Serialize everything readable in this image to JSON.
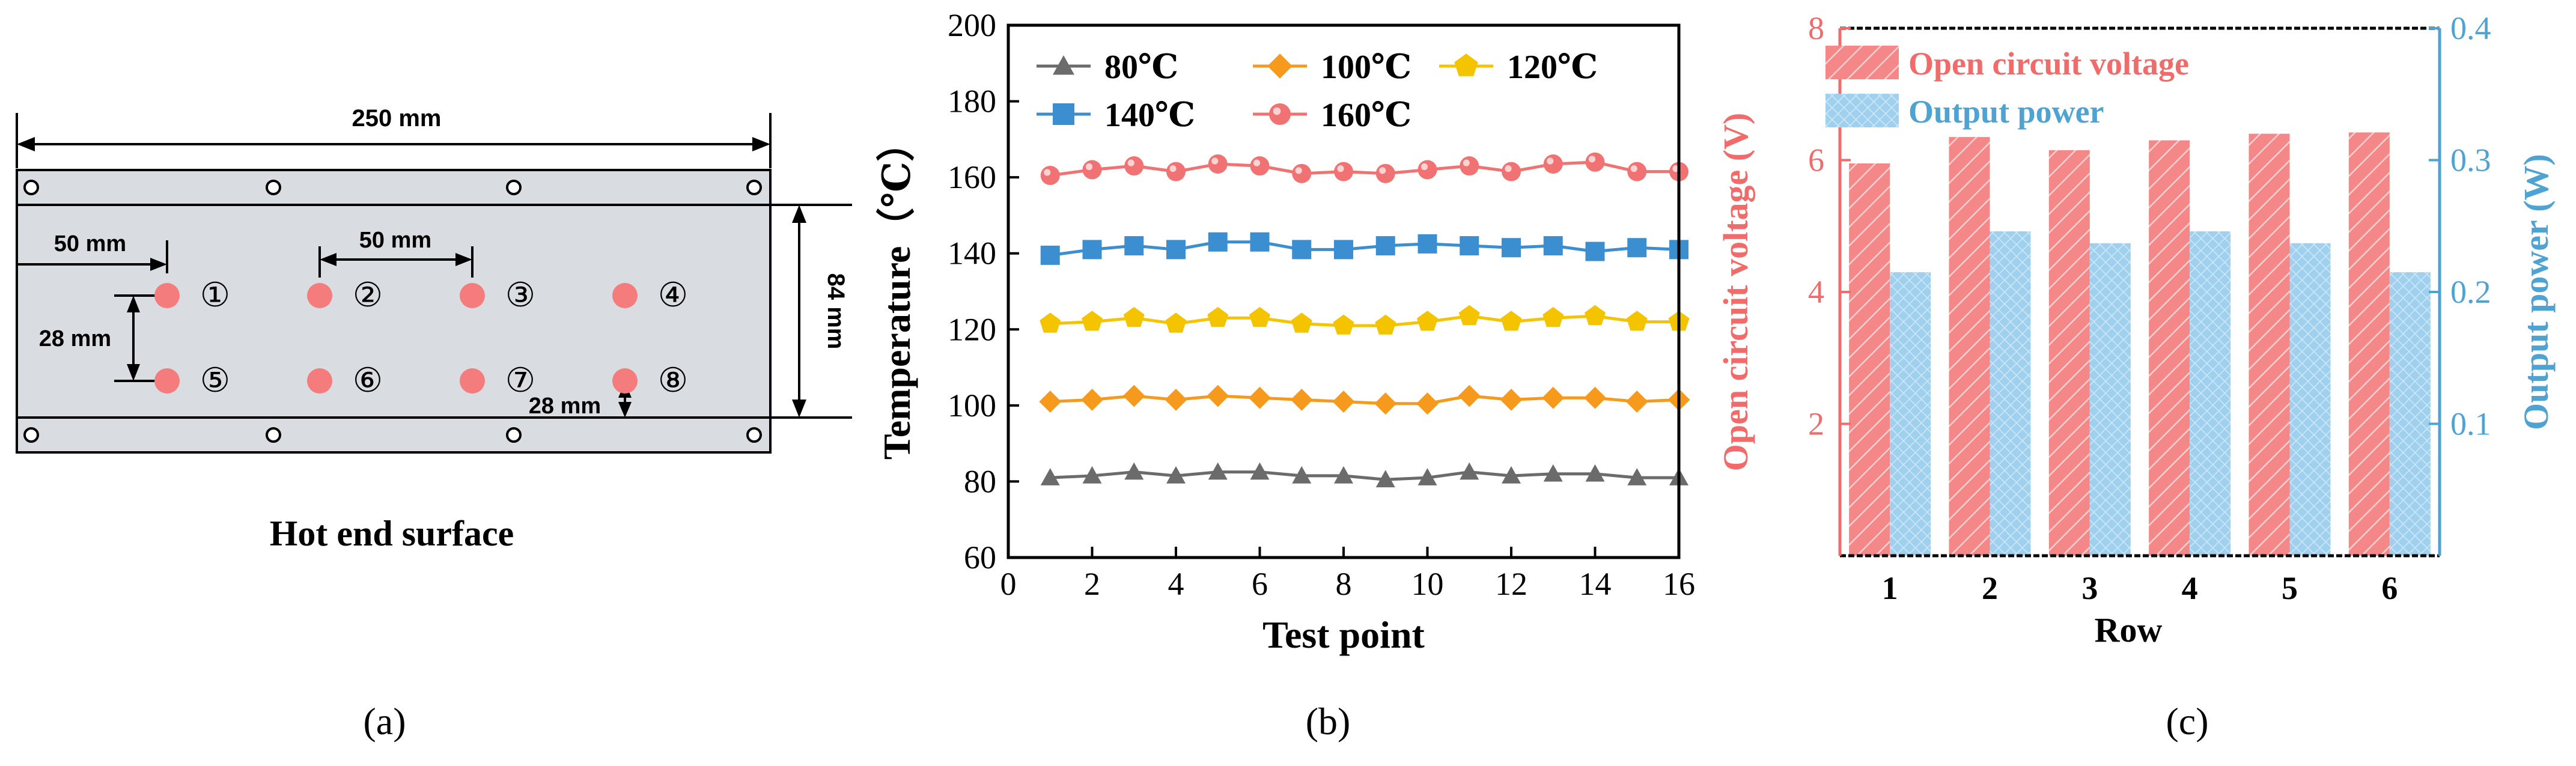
{
  "colors": {
    "plate": "#d9dde2",
    "dot": "#f47c7c",
    "red": "#f26b6b",
    "blue": "#4fa3d2",
    "s80": "#6b6b6b",
    "s100": "#f59a1c",
    "s120": "#f5c400",
    "s140": "#3b8fd0",
    "s160": "#f07272",
    "bar_red": "#f48787",
    "bar_blue": "#9fd0ee"
  },
  "panel_a": {
    "caption": "(a)",
    "title": "Hot end surface",
    "dim_width": "250 mm",
    "dim_height": "84 mm",
    "dim_spacing_left": "50 mm",
    "dim_spacing_mid": "50 mm",
    "dim_row_gap": "28 mm",
    "dim_bottom_gap": "28 mm",
    "point_labels": [
      "①",
      "②",
      "③",
      "④",
      "⑤",
      "⑥",
      "⑦",
      "⑧"
    ]
  },
  "chart_data": [
    {
      "panel": "(b)",
      "type": "line",
      "title": "",
      "xlabel": "Test point",
      "ylabel": "Temperature（℃）",
      "xlim": [
        0,
        16
      ],
      "ylim": [
        60,
        200
      ],
      "xticks": [
        0,
        2,
        4,
        6,
        8,
        10,
        12,
        14,
        16
      ],
      "yticks": [
        60,
        80,
        100,
        120,
        140,
        160,
        180,
        200
      ],
      "x": [
        1,
        2,
        3,
        4,
        5,
        6,
        7,
        8,
        9,
        10,
        11,
        12,
        13,
        14,
        15,
        16
      ],
      "legend": "top-left",
      "series": [
        {
          "name": "80℃",
          "marker": "triangle",
          "color": "#6b6b6b",
          "values": [
            81,
            81.5,
            82.5,
            81.5,
            82.5,
            82.5,
            81.5,
            81.5,
            80.5,
            81,
            82.5,
            81.5,
            82,
            82,
            81,
            81
          ]
        },
        {
          "name": "100℃",
          "marker": "diamond",
          "color": "#f59a1c",
          "values": [
            101,
            101.5,
            102.5,
            101.5,
            102.5,
            102,
            101.5,
            101,
            100.5,
            100.5,
            102.5,
            101.5,
            102,
            102,
            101,
            101.5
          ]
        },
        {
          "name": "120℃",
          "marker": "pentagon",
          "color": "#f5c400",
          "values": [
            121.5,
            122,
            123,
            121.5,
            123,
            123,
            121.5,
            121,
            121,
            122,
            123.5,
            122,
            123,
            123.5,
            122,
            122
          ]
        },
        {
          "name": "140℃",
          "marker": "square",
          "color": "#3b8fd0",
          "values": [
            139.5,
            141,
            142,
            141,
            143,
            143,
            141,
            141,
            142,
            142.5,
            142,
            141.5,
            142,
            140.5,
            141.5,
            141
          ]
        },
        {
          "name": "160℃",
          "marker": "circle",
          "color": "#f07272",
          "values": [
            160.5,
            162,
            163,
            161.5,
            163.5,
            163,
            161,
            161.5,
            161,
            162,
            163,
            161.5,
            163.5,
            164,
            161.5,
            161.5
          ]
        }
      ]
    },
    {
      "panel": "(c)",
      "type": "bar",
      "title": "",
      "xlabel": "Row",
      "ylabel": "Open circuit voltage (V)",
      "ylabel_right": "Output power (W)",
      "categories": [
        "1",
        "2",
        "3",
        "4",
        "5",
        "6"
      ],
      "ylim": [
        0,
        8
      ],
      "ylim_right": [
        0,
        0.4
      ],
      "yticks": [
        2,
        4,
        6,
        8
      ],
      "yticks_right": [
        0.1,
        0.2,
        0.3,
        0.4
      ],
      "legend": "top-left",
      "series": [
        {
          "name": "Open circuit voltage",
          "axis": "left",
          "color": "#f48787",
          "values": [
            5.95,
            6.35,
            6.15,
            6.3,
            6.4,
            6.42
          ]
        },
        {
          "name": "Output power",
          "axis": "right",
          "color": "#9fd0ee",
          "values": [
            0.215,
            0.246,
            0.237,
            0.246,
            0.237,
            0.215
          ]
        }
      ]
    }
  ],
  "panel_b": {
    "caption": "(b)"
  },
  "panel_c": {
    "caption": "(c)"
  }
}
